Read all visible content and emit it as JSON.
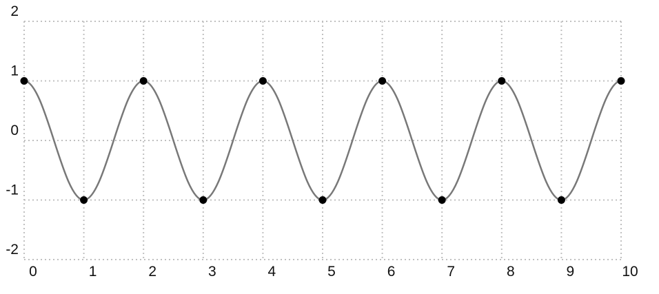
{
  "chart_data": {
    "type": "line",
    "title": "",
    "xlabel": "",
    "ylabel": "",
    "xlim": [
      0,
      10
    ],
    "ylim": [
      -2,
      2
    ],
    "grid": true,
    "legend": "none",
    "x_ticks": [
      0,
      1,
      2,
      3,
      4,
      5,
      6,
      7,
      8,
      9,
      10
    ],
    "y_ticks": [
      2,
      1,
      0,
      -1,
      -2
    ],
    "x_tick_labels": [
      "0",
      "1",
      "2",
      "3",
      "4",
      "5",
      "6",
      "7",
      "8",
      "9",
      "10"
    ],
    "y_tick_labels": [
      "2",
      "1",
      "0",
      "-1",
      "-2"
    ],
    "series": [
      {
        "x": [
          0,
          1,
          2,
          3,
          4,
          5,
          6,
          7,
          8,
          9,
          10
        ],
        "y": [
          1,
          -1,
          1,
          -1,
          1,
          -1,
          1,
          -1,
          1,
          -1,
          1
        ]
      }
    ],
    "colors": {
      "line": "#787878",
      "points": "#000000",
      "grid": "#c0c0c0",
      "text": "#111111"
    }
  }
}
